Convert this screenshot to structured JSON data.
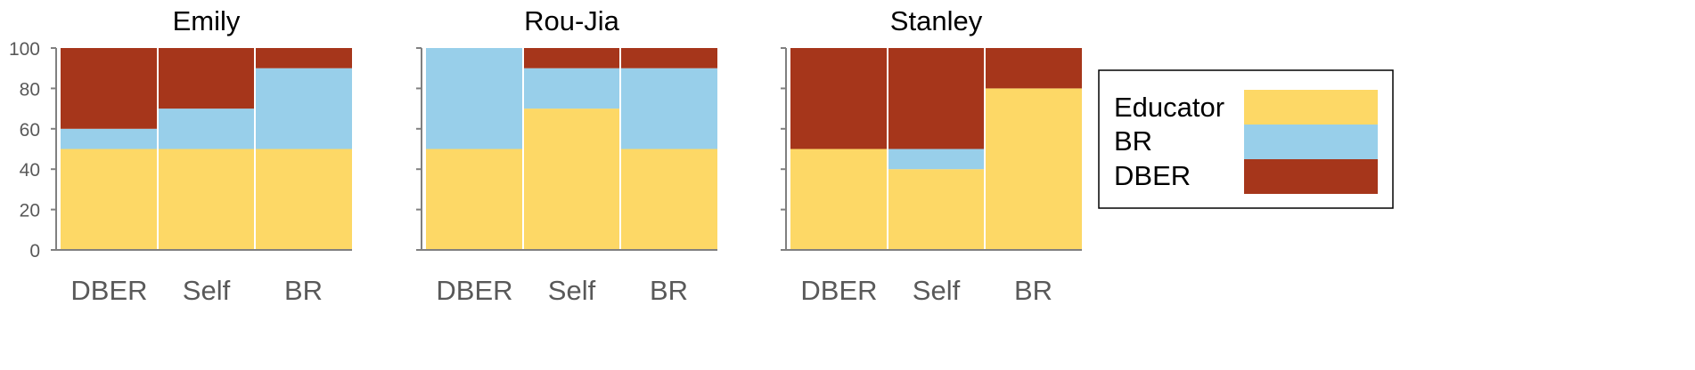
{
  "chart_data": {
    "type": "bar",
    "stacked": true,
    "yaxis_on": "first-panel",
    "grid": false,
    "colors": {
      "Educator": "#FDD866",
      "BR": "#98CFEA",
      "DBER": "#A6361B"
    },
    "legend": {
      "placement": "right",
      "entries": [
        "Educator",
        "BR",
        "DBER"
      ]
    },
    "panels": [
      {
        "title": "Emily",
        "categories": [
          "DBER",
          "Self",
          "BR"
        ],
        "ylim": [
          0,
          100
        ],
        "yticks": [
          0,
          20,
          40,
          60,
          80,
          100
        ],
        "series": [
          {
            "name": "Educator",
            "values": [
              50,
              50,
              50
            ]
          },
          {
            "name": "BR",
            "values": [
              10,
              20,
              40
            ]
          },
          {
            "name": "DBER",
            "values": [
              40,
              30,
              10
            ]
          }
        ]
      },
      {
        "title": "Rou-Jia",
        "categories": [
          "DBER",
          "Self",
          "BR"
        ],
        "ylim": [
          0,
          100
        ],
        "series": [
          {
            "name": "Educator",
            "values": [
              50,
              70,
              50
            ]
          },
          {
            "name": "BR",
            "values": [
              50,
              20,
              40
            ]
          },
          {
            "name": "DBER",
            "values": [
              0,
              10,
              10
            ]
          }
        ]
      },
      {
        "title": "Stanley",
        "categories": [
          "DBER",
          "Self",
          "BR"
        ],
        "ylim": [
          0,
          100
        ],
        "series": [
          {
            "name": "Educator",
            "values": [
              50,
              40,
              80
            ]
          },
          {
            "name": "BR",
            "values": [
              0,
              10,
              0
            ]
          },
          {
            "name": "DBER",
            "values": [
              50,
              50,
              20
            ]
          }
        ]
      }
    ]
  }
}
